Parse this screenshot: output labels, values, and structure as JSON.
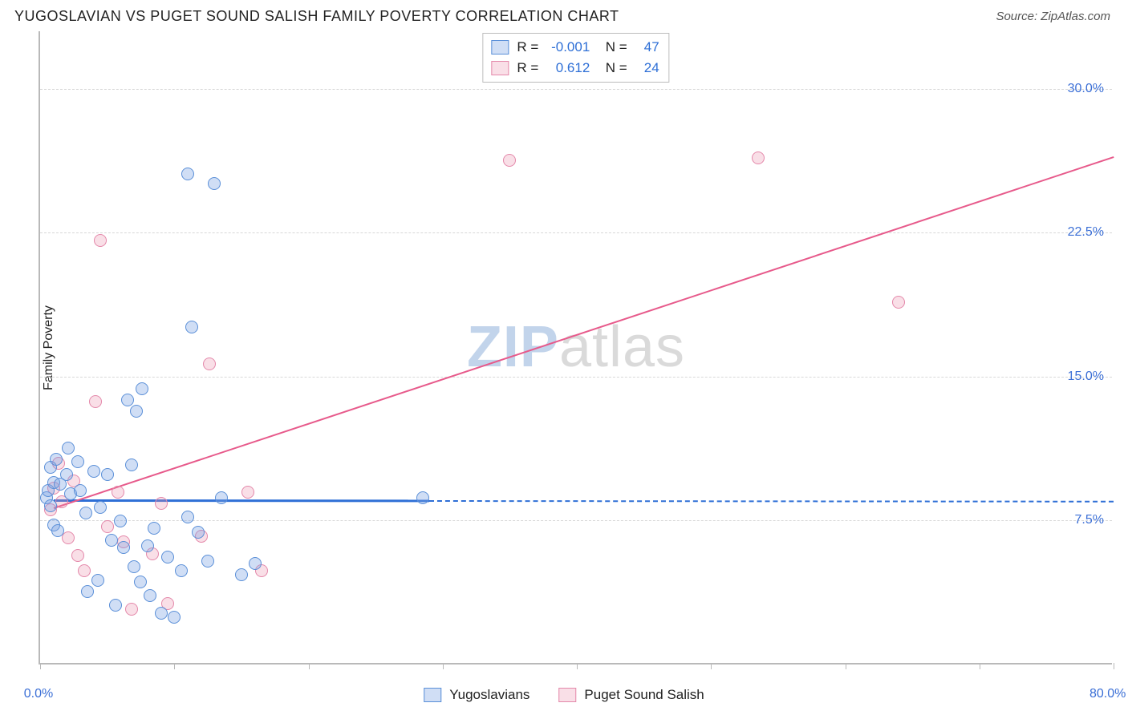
{
  "header": {
    "title": "YUGOSLAVIAN VS PUGET SOUND SALISH FAMILY POVERTY CORRELATION CHART",
    "source": "Source: ZipAtlas.com"
  },
  "chart": {
    "type": "scatter",
    "ylabel": "Family Poverty",
    "xlim": [
      0,
      80
    ],
    "ylim": [
      0,
      33
    ],
    "xticks_minor": [
      0,
      10,
      20,
      30,
      40,
      50,
      60,
      70,
      80
    ],
    "x_min_label": "0.0%",
    "x_max_label": "80.0%",
    "yticks": [
      7.5,
      15.0,
      22.5,
      30.0
    ],
    "ytick_labels": [
      "7.5%",
      "15.0%",
      "22.5%",
      "30.0%"
    ],
    "gridline_y": [
      7.5,
      15.0,
      22.5,
      30.0
    ],
    "background": "#ffffff",
    "grid_color": "#d8d8d8",
    "axis_color": "#b9b9b9",
    "watermark": {
      "part1": "ZIP",
      "part2": "atlas"
    },
    "series": [
      {
        "key": "yugoslavians",
        "label": "Yugoslavians",
        "color_fill": "rgba(120,160,225,0.35)",
        "color_stroke": "#5a8fd8",
        "trend_color": "#2e6fd6",
        "marker_size": 16,
        "R": "-0.001",
        "N": "47",
        "trend": {
          "x1": 1.0,
          "y1": 8.6,
          "x_solid_end": 29.0,
          "x2": 80.0,
          "y2": 8.55
        },
        "points": [
          [
            0.5,
            8.6
          ],
          [
            0.6,
            9.0
          ],
          [
            0.8,
            10.2
          ],
          [
            1.0,
            9.4
          ],
          [
            1.2,
            10.6
          ],
          [
            1.0,
            7.2
          ],
          [
            1.3,
            6.9
          ],
          [
            1.5,
            9.3
          ],
          [
            0.8,
            8.2
          ],
          [
            2.0,
            9.8
          ],
          [
            2.3,
            8.8
          ],
          [
            2.8,
            10.5
          ],
          [
            3.0,
            9.0
          ],
          [
            3.4,
            7.8
          ],
          [
            4.0,
            10.0
          ],
          [
            4.5,
            8.1
          ],
          [
            5.0,
            9.8
          ],
          [
            5.3,
            6.4
          ],
          [
            6.0,
            7.4
          ],
          [
            6.2,
            6.0
          ],
          [
            6.8,
            10.3
          ],
          [
            7.0,
            5.0
          ],
          [
            7.5,
            4.2
          ],
          [
            8.0,
            6.1
          ],
          [
            8.5,
            7.0
          ],
          [
            8.2,
            3.5
          ],
          [
            9.0,
            2.6
          ],
          [
            9.5,
            5.5
          ],
          [
            10.0,
            2.4
          ],
          [
            10.5,
            4.8
          ],
          [
            11.0,
            7.6
          ],
          [
            11.8,
            6.8
          ],
          [
            12.5,
            5.3
          ],
          [
            13.5,
            8.6
          ],
          [
            15.0,
            4.6
          ],
          [
            16.0,
            5.2
          ],
          [
            6.5,
            13.7
          ],
          [
            7.2,
            13.1
          ],
          [
            7.6,
            14.3
          ],
          [
            11.3,
            17.5
          ],
          [
            11.0,
            25.5
          ],
          [
            13.0,
            25.0
          ],
          [
            28.5,
            8.6
          ],
          [
            5.6,
            3.0
          ],
          [
            4.3,
            4.3
          ],
          [
            3.5,
            3.7
          ],
          [
            2.1,
            11.2
          ]
        ]
      },
      {
        "key": "puget_sound_salish",
        "label": "Puget Sound Salish",
        "color_fill": "rgba(235,140,170,0.28)",
        "color_stroke": "#e488aa",
        "trend_color": "#e75a8b",
        "marker_size": 16,
        "R": "0.612",
        "N": "24",
        "trend": {
          "x1": 1.0,
          "y1": 8.2,
          "x_solid_end": 80.0,
          "x2": 80.0,
          "y2": 26.5
        },
        "points": [
          [
            0.8,
            8.0
          ],
          [
            1.0,
            9.1
          ],
          [
            1.4,
            10.4
          ],
          [
            1.6,
            8.4
          ],
          [
            2.1,
            6.5
          ],
          [
            2.5,
            9.5
          ],
          [
            2.8,
            5.6
          ],
          [
            3.3,
            4.8
          ],
          [
            4.1,
            13.6
          ],
          [
            4.5,
            22.0
          ],
          [
            5.0,
            7.1
          ],
          [
            5.8,
            8.9
          ],
          [
            6.2,
            6.3
          ],
          [
            6.8,
            2.8
          ],
          [
            8.4,
            5.7
          ],
          [
            9.0,
            8.3
          ],
          [
            9.5,
            3.1
          ],
          [
            12.0,
            6.6
          ],
          [
            12.6,
            15.6
          ],
          [
            15.5,
            8.9
          ],
          [
            16.5,
            4.8
          ],
          [
            35.0,
            26.2
          ],
          [
            53.5,
            26.3
          ],
          [
            64.0,
            18.8
          ]
        ]
      }
    ]
  },
  "legend_bottom": [
    {
      "swatch": "a",
      "label": "Yugoslavians"
    },
    {
      "swatch": "b",
      "label": "Puget Sound Salish"
    }
  ]
}
